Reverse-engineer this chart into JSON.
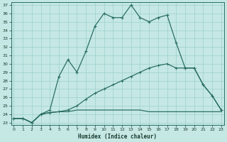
{
  "xlabel": "Humidex (Indice chaleur)",
  "bg_color": "#c5e8e4",
  "grid_color": "#9ecfcc",
  "line_color": "#2a6e62",
  "xlim": [
    0,
    23
  ],
  "ylim": [
    23,
    37
  ],
  "yticks": [
    23,
    24,
    25,
    26,
    27,
    28,
    29,
    30,
    31,
    32,
    33,
    34,
    35,
    36,
    37
  ],
  "xticks": [
    0,
    1,
    2,
    3,
    4,
    5,
    6,
    7,
    8,
    9,
    10,
    11,
    12,
    13,
    14,
    15,
    16,
    17,
    18,
    19,
    20,
    21,
    22,
    23
  ],
  "line_max_x": [
    0,
    1,
    2,
    3,
    4,
    5,
    6,
    7,
    8,
    9,
    10,
    11,
    12,
    13,
    14,
    15,
    16,
    17,
    18,
    19,
    20,
    21,
    22,
    23
  ],
  "line_max_y": [
    23.5,
    23.5,
    23.0,
    24.0,
    24.5,
    28.5,
    30.5,
    29.0,
    31.5,
    34.5,
    36.0,
    35.5,
    35.5,
    37.0,
    35.5,
    35.0,
    35.5,
    35.8,
    32.5,
    29.5,
    29.5,
    27.5,
    26.2,
    24.5
  ],
  "line_diag_x": [
    0,
    1,
    2,
    3,
    4,
    5,
    6,
    7,
    8,
    9,
    10,
    11,
    12,
    13,
    14,
    15,
    16,
    17,
    18,
    19,
    20,
    21,
    22,
    23
  ],
  "line_diag_y": [
    23.5,
    23.5,
    23.0,
    24.0,
    24.2,
    24.3,
    24.5,
    25.0,
    25.8,
    26.5,
    27.0,
    27.5,
    28.0,
    28.5,
    29.0,
    29.5,
    29.8,
    30.0,
    29.5,
    29.5,
    29.5,
    27.5,
    26.2,
    24.5
  ],
  "line_flat_x": [
    0,
    1,
    2,
    3,
    4,
    5,
    6,
    7,
    8,
    9,
    10,
    11,
    12,
    13,
    14,
    15,
    16,
    17,
    18,
    19,
    20,
    21,
    22,
    23
  ],
  "line_flat_y": [
    23.5,
    23.5,
    23.0,
    24.0,
    24.2,
    24.3,
    24.3,
    24.5,
    24.5,
    24.5,
    24.5,
    24.5,
    24.5,
    24.5,
    24.5,
    24.3,
    24.3,
    24.3,
    24.3,
    24.3,
    24.3,
    24.3,
    24.3,
    24.3
  ]
}
